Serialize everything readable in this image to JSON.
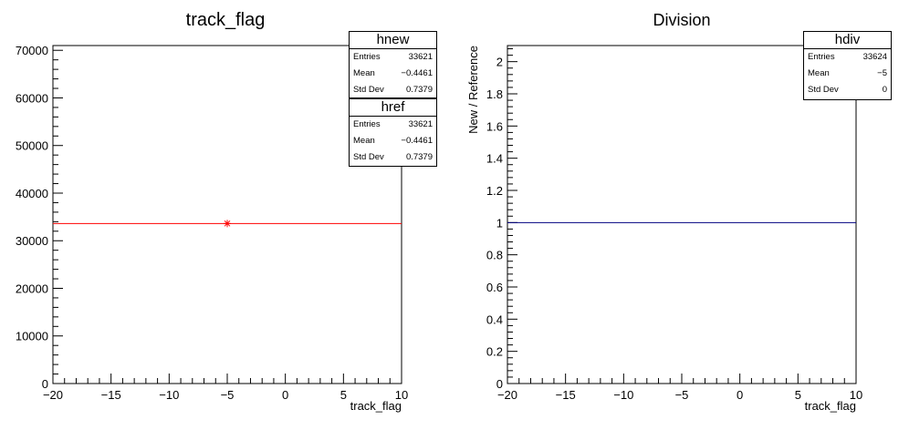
{
  "chart_data": [
    {
      "type": "line",
      "title": "track_flag",
      "xlabel": "track_flag",
      "ylabel": "",
      "xlim": [
        -20,
        10
      ],
      "ylim": [
        0,
        71000
      ],
      "x_ticks": [
        -20,
        -15,
        -10,
        -5,
        0,
        5,
        10
      ],
      "x_tick_labels": [
        "−20",
        "−15",
        "−10",
        "−5",
        "0",
        "5",
        "10"
      ],
      "y_ticks": [
        0,
        10000,
        20000,
        30000,
        40000,
        50000,
        60000,
        70000
      ],
      "y_tick_labels": [
        "0",
        "10000",
        "20000",
        "30000",
        "40000",
        "50000",
        "60000",
        "70000"
      ],
      "series": [
        {
          "name": "hnew",
          "color": "#ff0000",
          "x": [
            -20,
            10
          ],
          "y": [
            33621,
            33621
          ]
        },
        {
          "name": "href",
          "color": "#ff0000",
          "marker": "star",
          "x": [
            -5
          ],
          "y": [
            33621
          ]
        }
      ],
      "grid": false,
      "stats": [
        {
          "name": "hnew",
          "entries": "33621",
          "mean": "−0.4461",
          "std_dev": "0.7379"
        },
        {
          "name": "href",
          "entries": "33621",
          "mean": "−0.4461",
          "std_dev": "0.7379"
        }
      ]
    },
    {
      "type": "line",
      "title": "Division",
      "xlabel": "track_flag",
      "ylabel": "New / Reference",
      "xlim": [
        -20,
        10
      ],
      "ylim": [
        0,
        2.1
      ],
      "x_ticks": [
        -20,
        -15,
        -10,
        -5,
        0,
        5,
        10
      ],
      "x_tick_labels": [
        "−20",
        "−15",
        "−10",
        "−5",
        "0",
        "5",
        "10"
      ],
      "y_ticks": [
        0,
        0.2,
        0.4,
        0.6,
        0.8,
        1,
        1.2,
        1.4,
        1.6,
        1.8,
        2
      ],
      "y_tick_labels": [
        "0",
        "0.2",
        "0.4",
        "0.6",
        "0.8",
        "1",
        "1.2",
        "1.4",
        "1.6",
        "1.8",
        "2"
      ],
      "series": [
        {
          "name": "hdiv",
          "color": "#000080",
          "x": [
            -20,
            10
          ],
          "y": [
            1,
            1
          ]
        }
      ],
      "grid": false,
      "stats": [
        {
          "name": "hdiv",
          "entries": "33624",
          "mean": "−5",
          "std_dev": "0"
        }
      ]
    }
  ],
  "stat_labels": {
    "entries": "Entries",
    "mean": "Mean",
    "std_dev": "Std Dev"
  }
}
